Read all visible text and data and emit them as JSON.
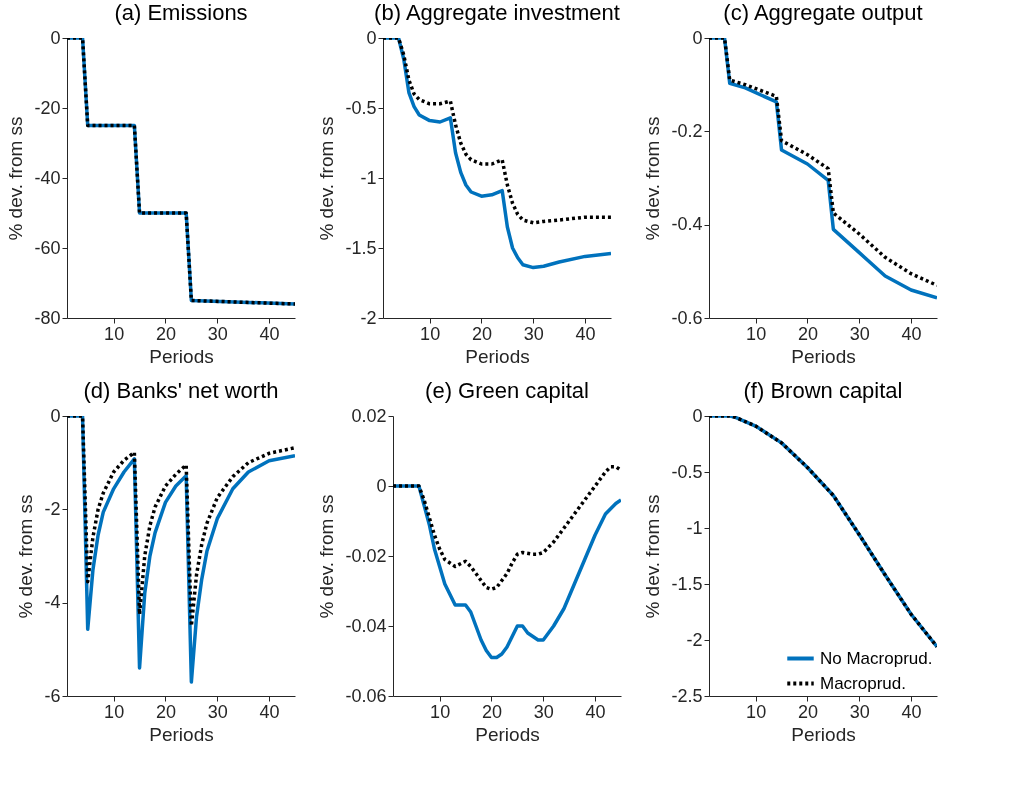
{
  "chart_data": [
    {
      "type": "line",
      "title": "(a) Emissions",
      "xlabel": "Periods",
      "ylabel": "% dev. from ss",
      "xlim": [
        1,
        45
      ],
      "xticks": [
        10,
        20,
        30,
        40
      ],
      "ylim": [
        -80,
        0
      ],
      "yticks": [
        -80,
        -60,
        -40,
        -20,
        0
      ],
      "series": [
        {
          "color": "#0072bd",
          "line_style": "solid",
          "x": [
            1,
            4,
            5,
            14,
            15,
            24,
            25,
            45
          ],
          "values": [
            0,
            0,
            -25,
            -25,
            -50,
            -50,
            -75,
            -76
          ]
        },
        {
          "color": "#000000",
          "line_style": "dotted",
          "x": [
            1,
            4,
            5,
            14,
            15,
            24,
            25,
            45
          ],
          "values": [
            0,
            0,
            -25,
            -25,
            -50,
            -50,
            -75,
            -76
          ]
        }
      ]
    },
    {
      "type": "line",
      "title": "(b) Aggregate investment",
      "xlabel": "Periods",
      "ylabel": "% dev. from ss",
      "xlim": [
        1,
        45
      ],
      "xticks": [
        10,
        20,
        30,
        40
      ],
      "ylim": [
        -2,
        0
      ],
      "yticks": [
        -2,
        -1.5,
        -1,
        -0.5,
        0
      ],
      "series": [
        {
          "color": "#0072bd",
          "line_style": "solid",
          "x": [
            1,
            4,
            5,
            6,
            7,
            8,
            10,
            12,
            14,
            15,
            16,
            17,
            18,
            20,
            22,
            24,
            25,
            26,
            27,
            28,
            30,
            32,
            35,
            40,
            45
          ],
          "values": [
            0,
            0,
            -0.15,
            -0.39,
            -0.49,
            -0.55,
            -0.59,
            -0.6,
            -0.57,
            -0.82,
            -0.96,
            -1.05,
            -1.1,
            -1.13,
            -1.12,
            -1.09,
            -1.35,
            -1.5,
            -1.57,
            -1.62,
            -1.64,
            -1.63,
            -1.6,
            -1.56,
            -1.54
          ]
        },
        {
          "color": "#000000",
          "line_style": "dotted",
          "x": [
            1,
            4,
            5,
            6,
            7,
            8,
            10,
            12,
            14,
            15,
            16,
            17,
            18,
            20,
            22,
            24,
            25,
            26,
            27,
            28,
            30,
            32,
            35,
            40,
            45
          ],
          "values": [
            0,
            0,
            -0.12,
            -0.3,
            -0.4,
            -0.44,
            -0.47,
            -0.47,
            -0.45,
            -0.62,
            -0.75,
            -0.83,
            -0.87,
            -0.9,
            -0.9,
            -0.87,
            -1.05,
            -1.18,
            -1.26,
            -1.3,
            -1.32,
            -1.31,
            -1.3,
            -1.28,
            -1.28
          ]
        }
      ]
    },
    {
      "type": "line",
      "title": "(c) Aggregate output",
      "xlabel": "Periods",
      "ylabel": "% dev. from ss",
      "xlim": [
        1,
        45
      ],
      "xticks": [
        10,
        20,
        30,
        40
      ],
      "ylim": [
        -0.6,
        0
      ],
      "yticks": [
        -0.6,
        -0.4,
        -0.2,
        0
      ],
      "series": [
        {
          "color": "#0072bd",
          "line_style": "solid",
          "x": [
            1,
            4,
            5,
            8,
            14,
            15,
            20,
            24,
            25,
            30,
            35,
            40,
            45
          ],
          "values": [
            0,
            0,
            -0.097,
            -0.107,
            -0.137,
            -0.24,
            -0.27,
            -0.305,
            -0.41,
            -0.46,
            -0.51,
            -0.54,
            -0.557
          ]
        },
        {
          "color": "#000000",
          "line_style": "dotted",
          "x": [
            1,
            4,
            5,
            8,
            14,
            15,
            20,
            24,
            25,
            30,
            35,
            40,
            45
          ],
          "values": [
            0,
            0,
            -0.09,
            -0.1,
            -0.125,
            -0.22,
            -0.25,
            -0.28,
            -0.375,
            -0.42,
            -0.47,
            -0.505,
            -0.53
          ]
        }
      ]
    },
    {
      "type": "line",
      "title": "(d) Banks' net worth",
      "xlabel": "Periods",
      "ylabel": "% dev. from ss",
      "xlim": [
        1,
        45
      ],
      "xticks": [
        10,
        20,
        30,
        40
      ],
      "ylim": [
        -6,
        0
      ],
      "yticks": [
        -6,
        -4,
        -2,
        0
      ],
      "series": [
        {
          "color": "#0072bd",
          "line_style": "solid",
          "x": [
            1,
            4,
            5,
            6,
            7,
            8,
            10,
            12,
            14,
            15,
            16,
            17,
            18,
            20,
            22,
            24,
            25,
            26,
            27,
            28,
            30,
            33,
            36,
            40,
            45
          ],
          "values": [
            0,
            0,
            -4.57,
            -3.3,
            -2.55,
            -2.06,
            -1.56,
            -1.2,
            -0.92,
            -5.4,
            -3.8,
            -3.0,
            -2.5,
            -1.85,
            -1.5,
            -1.28,
            -5.7,
            -4.3,
            -3.5,
            -2.9,
            -2.2,
            -1.56,
            -1.2,
            -0.96,
            -0.85
          ]
        },
        {
          "color": "#000000",
          "line_style": "dotted",
          "x": [
            1,
            4,
            5,
            6,
            7,
            8,
            10,
            12,
            14,
            15,
            16,
            17,
            18,
            20,
            22,
            24,
            25,
            26,
            27,
            28,
            30,
            33,
            36,
            40,
            45
          ],
          "values": [
            0,
            0,
            -3.55,
            -2.6,
            -2.0,
            -1.65,
            -1.2,
            -0.95,
            -0.78,
            -4.25,
            -3.0,
            -2.35,
            -1.95,
            -1.5,
            -1.25,
            -1.05,
            -4.5,
            -3.4,
            -2.75,
            -2.3,
            -1.75,
            -1.3,
            -1.0,
            -0.8,
            -0.68
          ]
        }
      ]
    },
    {
      "type": "line",
      "title": "(e) Green capital",
      "xlabel": "Periods",
      "ylabel": "% dev. from ss",
      "xlim": [
        1,
        45
      ],
      "xticks": [
        10,
        20,
        30,
        40
      ],
      "ylim": [
        -0.06,
        0.02
      ],
      "yticks": [
        -0.06,
        -0.04,
        -0.02,
        0,
        0.02
      ],
      "series": [
        {
          "color": "#0072bd",
          "line_style": "solid",
          "x": [
            1,
            6,
            7,
            8,
            9,
            10,
            11,
            12,
            13,
            15,
            16,
            17,
            18,
            19,
            20,
            21,
            22,
            23,
            24,
            25,
            26,
            27,
            28,
            29,
            30,
            32,
            34,
            36,
            38,
            40,
            42,
            44,
            45
          ],
          "values": [
            0,
            0,
            -0.0055,
            -0.011,
            -0.018,
            -0.023,
            -0.028,
            -0.031,
            -0.034,
            -0.034,
            -0.036,
            -0.04,
            -0.044,
            -0.047,
            -0.049,
            -0.049,
            -0.048,
            -0.046,
            -0.043,
            -0.04,
            -0.04,
            -0.042,
            -0.043,
            -0.044,
            -0.044,
            -0.04,
            -0.035,
            -0.028,
            -0.021,
            -0.014,
            -0.008,
            -0.005,
            -0.004
          ]
        },
        {
          "color": "#000000",
          "line_style": "dotted",
          "x": [
            1,
            6,
            7,
            8,
            9,
            10,
            11,
            12,
            13,
            15,
            16,
            17,
            18,
            19,
            20,
            21,
            22,
            23,
            24,
            25,
            26,
            28,
            29,
            30,
            32,
            34,
            36,
            38,
            40,
            42,
            43,
            44,
            45
          ],
          "values": [
            0,
            0,
            -0.004,
            -0.009,
            -0.014,
            -0.018,
            -0.021,
            -0.022,
            -0.023,
            -0.0215,
            -0.023,
            -0.025,
            -0.027,
            -0.029,
            -0.0295,
            -0.029,
            -0.027,
            -0.025,
            -0.022,
            -0.0195,
            -0.019,
            -0.0195,
            -0.0195,
            -0.019,
            -0.016,
            -0.012,
            -0.008,
            -0.004,
            0,
            0.004,
            0.0055,
            0.0055,
            0.0045
          ]
        }
      ]
    },
    {
      "type": "line",
      "title": "(f) Brown capital",
      "xlabel": "Periods",
      "ylabel": "% dev. from ss",
      "xlim": [
        1,
        45
      ],
      "xticks": [
        10,
        20,
        30,
        40
      ],
      "ylim": [
        -2.5,
        0
      ],
      "yticks": [
        -2.5,
        -2,
        -1.5,
        -1,
        -0.5,
        0
      ],
      "legend": "bottom right",
      "series": [
        {
          "name": "No Macroprud.",
          "color": "#0072bd",
          "line_style": "solid",
          "x": [
            1,
            5,
            6,
            8,
            10,
            15,
            20,
            25,
            30,
            35,
            40,
            45
          ],
          "values": [
            0,
            0,
            -0.01,
            -0.05,
            -0.09,
            -0.24,
            -0.46,
            -0.71,
            -1.06,
            -1.42,
            -1.77,
            -2.06
          ]
        },
        {
          "name": "Macroprud.",
          "color": "#000000",
          "line_style": "dotted",
          "x": [
            1,
            5,
            6,
            8,
            10,
            15,
            20,
            25,
            30,
            35,
            40,
            45
          ],
          "values": [
            0,
            0,
            -0.01,
            -0.05,
            -0.09,
            -0.24,
            -0.46,
            -0.71,
            -1.06,
            -1.42,
            -1.77,
            -2.06
          ]
        }
      ]
    }
  ]
}
